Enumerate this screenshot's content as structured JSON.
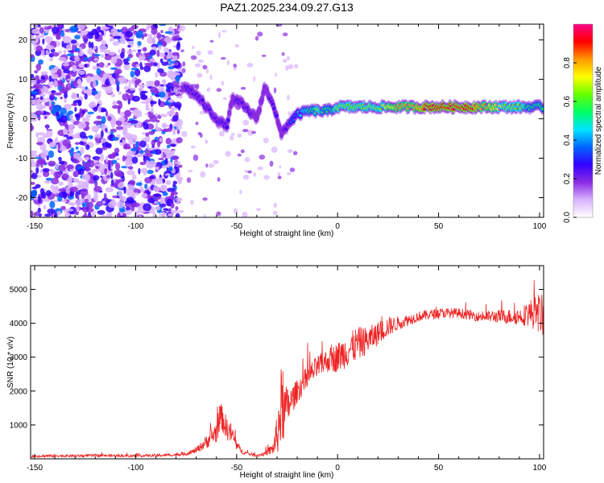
{
  "title": "PAZ1.2025.234.09.27.G13",
  "chart_data": [
    {
      "type": "heatmap",
      "title": "PAZ1.2025.234.09.27.G13",
      "xlabel": "Height of straight line (km)",
      "ylabel": "Frequency (Hz)",
      "xlim": [
        -152,
        102
      ],
      "ylim": [
        -25,
        24
      ],
      "xticks": [
        -150,
        -100,
        -50,
        0,
        50,
        100
      ],
      "yticks": [
        -20,
        -10,
        0,
        10,
        20
      ],
      "colorbar": {
        "label": "Normalized spectral amplitude",
        "range": [
          0.0,
          1.0
        ],
        "ticks": [
          0.0,
          0.2,
          0.4,
          0.6,
          0.8
        ],
        "tick_labels": [
          "0.0",
          "0.2",
          "0.4",
          "0.6",
          "0.8"
        ],
        "colors": [
          "#ffffff",
          "#d9b3ff",
          "#8a2be2",
          "#3300ff",
          "#0066ff",
          "#00e5ff",
          "#00ff66",
          "#66ff00",
          "#ffff00",
          "#ff9900",
          "#ff0000",
          "#ff0088"
        ]
      },
      "ridge": {
        "description_points_x": [
          -80,
          -75,
          -70,
          -65,
          -60,
          -55,
          -52,
          -48,
          -44,
          -40,
          -36,
          -32,
          -28,
          -24,
          -20,
          -15,
          -10,
          -5,
          0,
          5,
          10,
          20,
          30,
          40,
          50,
          60,
          70,
          80,
          90,
          100
        ],
        "description_points_freq": [
          7,
          8,
          6,
          3,
          0,
          -2,
          5,
          4,
          2,
          0,
          8,
          4,
          -4,
          -1,
          1,
          2,
          2,
          2,
          3,
          3,
          3,
          3,
          3,
          3,
          3,
          3,
          3,
          3,
          3,
          3
        ],
        "description_points_amp": [
          0.1,
          0.25,
          0.3,
          0.3,
          0.3,
          0.25,
          0.2,
          0.3,
          0.25,
          0.2,
          0.2,
          0.25,
          0.2,
          0.3,
          0.4,
          0.5,
          0.6,
          0.55,
          0.6,
          0.65,
          0.6,
          0.65,
          0.8,
          0.85,
          0.9,
          0.9,
          0.85,
          0.7,
          0.6,
          0.55
        ]
      }
    },
    {
      "type": "line",
      "xlabel": "Height of straight line (km)",
      "ylabel": "SNR (10 * v/v)",
      "xlim": [
        -152,
        102
      ],
      "ylim": [
        0,
        5700
      ],
      "xticks": [
        -150,
        -100,
        -50,
        0,
        50,
        100
      ],
      "yticks": [
        1000,
        2000,
        3000,
        4000,
        5000
      ],
      "series": [
        {
          "name": "SNR",
          "color": "#ee2222",
          "x": [
            -152,
            -140,
            -130,
            -120,
            -110,
            -100,
            -90,
            -80,
            -75,
            -70,
            -65,
            -60,
            -58,
            -55,
            -52,
            -50,
            -47,
            -44,
            -40,
            -36,
            -32,
            -30,
            -28,
            -26,
            -24,
            -22,
            -20,
            -15,
            -10,
            -5,
            0,
            5,
            10,
            15,
            20,
            25,
            30,
            40,
            50,
            60,
            70,
            80,
            90,
            95,
            100,
            102
          ],
          "y": [
            80,
            90,
            90,
            100,
            90,
            90,
            100,
            120,
            150,
            250,
            500,
            800,
            1300,
            900,
            700,
            400,
            200,
            150,
            100,
            150,
            300,
            700,
            1500,
            1400,
            1600,
            1800,
            2000,
            2400,
            2700,
            2900,
            3000,
            3200,
            3400,
            3500,
            3700,
            3900,
            4000,
            4200,
            4300,
            4300,
            4200,
            4200,
            4200,
            4300,
            4300,
            4200
          ],
          "noise": [
            40,
            40,
            40,
            40,
            40,
            40,
            40,
            40,
            50,
            80,
            200,
            350,
            400,
            350,
            300,
            150,
            60,
            50,
            40,
            60,
            200,
            600,
            1200,
            800,
            500,
            400,
            350,
            350,
            350,
            350,
            450,
            500,
            500,
            400,
            350,
            300,
            200,
            150,
            150,
            150,
            150,
            200,
            250,
            400,
            600,
            600
          ]
        }
      ]
    }
  ]
}
